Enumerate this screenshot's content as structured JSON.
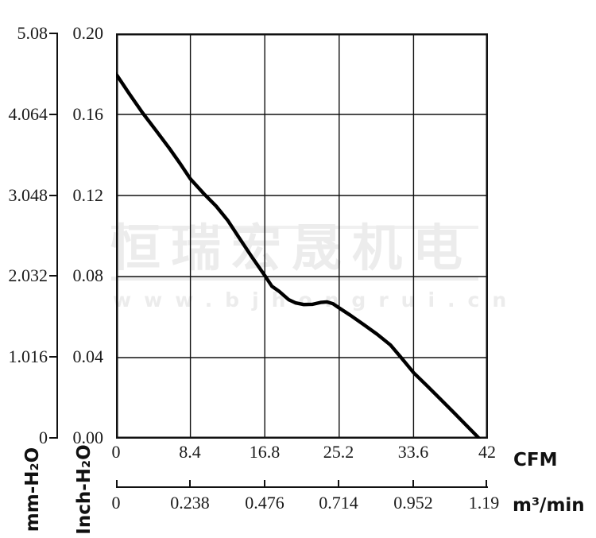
{
  "watermark": {
    "brand_text": "恒瑞宏晟机电",
    "url_text": "www.bjhongrui.cn",
    "color": "#ececec"
  },
  "chart_data": {
    "type": "line",
    "title": "",
    "grid": true,
    "legend": "none",
    "x_axes": [
      {
        "name": "airflow-cfm",
        "unit": "CFM",
        "min": 0,
        "max": 42,
        "ticks": [
          "0",
          "8.4",
          "16.8",
          "25.2",
          "33.6",
          "42"
        ]
      },
      {
        "name": "airflow-m3min",
        "unit": "m³/min",
        "min": 0,
        "max": 1.19,
        "ticks": [
          "0",
          "0.238",
          "0.476",
          "0.714",
          "0.952",
          "1.19"
        ]
      }
    ],
    "y_axes": [
      {
        "name": "static-pressure-mm",
        "unit": "mm-H₂O",
        "min": 0,
        "max": 5.08,
        "ticks": [
          "5.08",
          "4.064",
          "3.048",
          "2.032",
          "1.016",
          "0"
        ]
      },
      {
        "name": "static-pressure-inch",
        "unit": "Inch-H₂O",
        "min": 0,
        "max": 0.2,
        "ticks": [
          "0.20",
          "0.16",
          "0.12",
          "0.08",
          "0.04",
          "0.00"
        ]
      }
    ],
    "series": [
      {
        "name": "static-pressure-vs-airflow",
        "color": "#000000",
        "x_unit": "CFM",
        "y_unit": "Inch-H₂O",
        "points_cfm_inch": [
          [
            0,
            0.18
          ],
          [
            1.5,
            0.1702
          ],
          [
            3.0,
            0.1608
          ],
          [
            4.5,
            0.1522
          ],
          [
            6.0,
            0.1434
          ],
          [
            7.2,
            0.136
          ],
          [
            8.4,
            0.1282
          ],
          [
            10.0,
            0.1205
          ],
          [
            11.3,
            0.1148
          ],
          [
            12.6,
            0.1078
          ],
          [
            14.0,
            0.0985
          ],
          [
            15.4,
            0.0893
          ],
          [
            16.8,
            0.0805
          ],
          [
            17.6,
            0.0752
          ],
          [
            18.4,
            0.0728
          ],
          [
            19.5,
            0.0686
          ],
          [
            20.3,
            0.067
          ],
          [
            21.2,
            0.0662
          ],
          [
            22.2,
            0.0663
          ],
          [
            23.1,
            0.0672
          ],
          [
            23.8,
            0.0675
          ],
          [
            24.5,
            0.0666
          ],
          [
            25.2,
            0.0645
          ],
          [
            26.5,
            0.0608
          ],
          [
            28.0,
            0.0562
          ],
          [
            29.5,
            0.0515
          ],
          [
            31.0,
            0.0462
          ],
          [
            32.3,
            0.0395
          ],
          [
            33.6,
            0.0326
          ],
          [
            35.1,
            0.0262
          ],
          [
            36.6,
            0.0197
          ],
          [
            38.1,
            0.0131
          ],
          [
            39.6,
            0.0064
          ],
          [
            41.0,
            0.0002
          ]
        ]
      }
    ]
  }
}
